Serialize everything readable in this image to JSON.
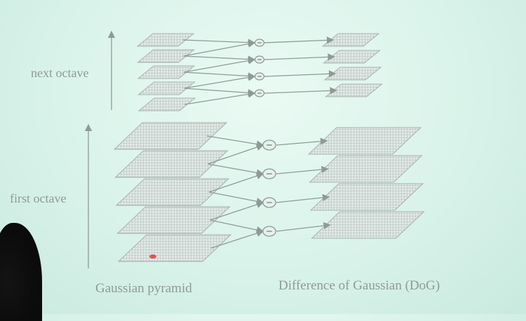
{
  "labels": {
    "next_octave": "next octave",
    "first_octave": "first octave",
    "gaussian_caption": "Gaussian pyramid",
    "dog_caption": "Difference of Gaussian (DoG)",
    "minus_symbol": "−"
  },
  "colors": {
    "line": "#8f9a97",
    "grid_fill": "#dfe8e5",
    "grid_stroke": "#a8b2af",
    "laser": "#e23c3c"
  },
  "octaves": [
    {
      "name": "next octave",
      "gaussian_levels": 5,
      "dog_levels": 4
    },
    {
      "name": "first octave",
      "gaussian_levels": 5,
      "dog_levels": 4
    }
  ]
}
